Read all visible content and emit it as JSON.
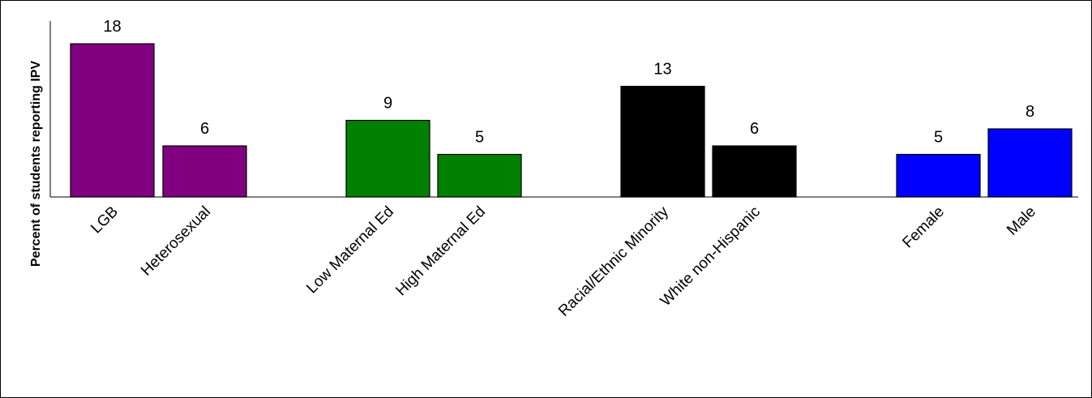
{
  "chart_data": {
    "type": "bar",
    "title": "",
    "xlabel": "",
    "ylabel": "Percent of students reporting IPV",
    "ylim": [
      0,
      20
    ],
    "grid": false,
    "legend": "none",
    "categories": [
      "LGB",
      "Heterosexual",
      "Low Maternal Ed",
      "High Maternal Ed",
      "Racial/Ethnic Minority",
      "White non-Hispanic",
      "Female",
      "Male"
    ],
    "values": [
      18,
      6,
      9,
      5,
      13,
      6,
      5,
      8
    ],
    "data_labels": [
      "18",
      "6",
      "9",
      "5",
      "13",
      "6",
      "5",
      "8"
    ],
    "groups": [
      {
        "categories": [
          "LGB",
          "Heterosexual"
        ],
        "color": "#800080"
      },
      {
        "categories": [
          "Low Maternal Ed",
          "High Maternal Ed"
        ],
        "color": "#008000"
      },
      {
        "categories": [
          "Racial/Ethnic Minority",
          "White non-Hispanic"
        ],
        "color": "#000000"
      },
      {
        "categories": [
          "Female",
          "Male"
        ],
        "color": "#0000FF"
      }
    ],
    "colors": [
      "#800080",
      "#800080",
      "#008000",
      "#008000",
      "#000000",
      "#000000",
      "#0000FF",
      "#0000FF"
    ]
  }
}
